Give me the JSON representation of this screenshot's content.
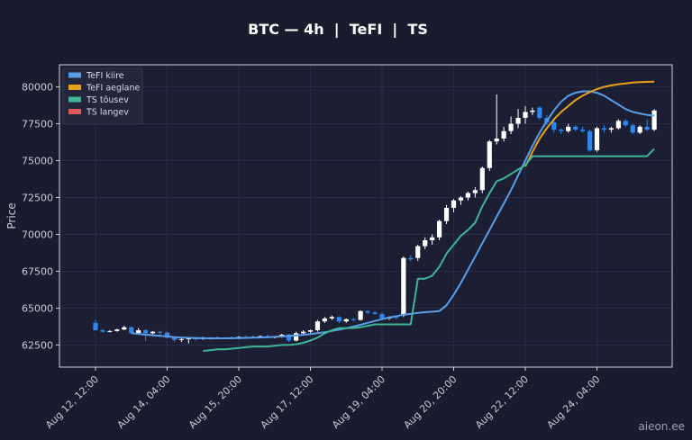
{
  "chart_data": {
    "type": "candlestick",
    "title": "BTC — 4h  |  TeFI  |  TS",
    "xlabel": "",
    "ylabel": "Price",
    "ylim": [
      61000,
      81500
    ],
    "grid": true,
    "legend_placement": "top-left",
    "x_ticks": [
      "Aug 12, 12:00",
      "Aug 14, 04:00",
      "Aug 15, 20:00",
      "Aug 17, 12:00",
      "Aug 19, 04:00",
      "Aug 20, 20:00",
      "Aug 22, 12:00",
      "Aug 24, 04:00"
    ],
    "y_ticks": [
      62500,
      65000,
      67500,
      70000,
      72500,
      75000,
      77500,
      80000
    ],
    "y_tick_labels": [
      "62500",
      "65000",
      "67500",
      "70000",
      "72500",
      "75000",
      "77500",
      "80000"
    ],
    "candles": [
      [
        64000,
        64200,
        63600,
        63500
      ],
      [
        63500,
        63600,
        63350,
        63400
      ],
      [
        63400,
        63500,
        63350,
        63450
      ],
      [
        63450,
        63600,
        63400,
        63550
      ],
      [
        63550,
        63800,
        63500,
        63700
      ],
      [
        63700,
        63750,
        63250,
        63300
      ],
      [
        63300,
        63650,
        63250,
        63500
      ],
      [
        63500,
        63600,
        62750,
        63300
      ],
      [
        63300,
        63450,
        63200,
        63400
      ],
      [
        63400,
        63450,
        63200,
        63350
      ],
      [
        63350,
        63400,
        62950,
        63000
      ],
      [
        63000,
        63050,
        62700,
        62850
      ],
      [
        62850,
        62950,
        62700,
        62900
      ],
      [
        62900,
        63000,
        62600,
        62950
      ],
      [
        62950,
        63050,
        62800,
        62900
      ],
      [
        62900,
        63050,
        62850,
        63000
      ],
      [
        63000,
        63050,
        62850,
        62950
      ],
      [
        62950,
        63050,
        62900,
        63000
      ],
      [
        63000,
        63050,
        62900,
        62980
      ],
      [
        62980,
        63050,
        62900,
        63000
      ],
      [
        63000,
        63100,
        62900,
        63050
      ],
      [
        63050,
        63150,
        62950,
        63000
      ],
      [
        63000,
        63100,
        62950,
        63050
      ],
      [
        63050,
        63150,
        63000,
        63100
      ],
      [
        63100,
        63200,
        62950,
        63000
      ],
      [
        63000,
        63100,
        62950,
        63050
      ],
      [
        63050,
        63250,
        63000,
        63200
      ],
      [
        63200,
        63250,
        62700,
        62800
      ],
      [
        62800,
        63400,
        62750,
        63300
      ],
      [
        63300,
        63500,
        63200,
        63400
      ],
      [
        63400,
        63550,
        63300,
        63500
      ],
      [
        63500,
        64200,
        63400,
        64100
      ],
      [
        64100,
        64400,
        64000,
        64300
      ],
      [
        64300,
        64500,
        64200,
        64400
      ],
      [
        64400,
        64450,
        64000,
        64100
      ],
      [
        64100,
        64300,
        64000,
        64250
      ],
      [
        64250,
        64350,
        64100,
        64200
      ],
      [
        64200,
        64850,
        64150,
        64800
      ],
      [
        64800,
        64850,
        64600,
        64700
      ],
      [
        64700,
        64800,
        64550,
        64600
      ],
      [
        64600,
        64700,
        64200,
        64300
      ],
      [
        64300,
        64450,
        64200,
        64400
      ],
      [
        64400,
        64500,
        64250,
        64350
      ],
      [
        64500,
        68500,
        64400,
        68400
      ],
      [
        68400,
        68600,
        68200,
        68300
      ],
      [
        68400,
        69300,
        68200,
        69200
      ],
      [
        69200,
        69800,
        69000,
        69600
      ],
      [
        69600,
        70000,
        69300,
        69800
      ],
      [
        69800,
        71000,
        69600,
        70900
      ],
      [
        70900,
        72000,
        70700,
        71800
      ],
      [
        71800,
        72400,
        71500,
        72300
      ],
      [
        72300,
        72600,
        72000,
        72500
      ],
      [
        72500,
        72900,
        72300,
        72800
      ],
      [
        72800,
        73200,
        72500,
        73000
      ],
      [
        73000,
        74600,
        72800,
        74500
      ],
      [
        74500,
        76400,
        74300,
        76300
      ],
      [
        76300,
        79500,
        76100,
        76500
      ],
      [
        76500,
        77300,
        76300,
        77000
      ],
      [
        77000,
        78000,
        76800,
        77500
      ],
      [
        77500,
        78500,
        77200,
        77900
      ],
      [
        77900,
        78700,
        77500,
        78300
      ],
      [
        78300,
        78600,
        78100,
        78400
      ],
      [
        78600,
        78700,
        77800,
        77900
      ],
      [
        77900,
        78100,
        77400,
        77600
      ],
      [
        77600,
        77800,
        76900,
        77100
      ],
      [
        77100,
        77200,
        76800,
        77000
      ],
      [
        77000,
        77500,
        76900,
        77300
      ],
      [
        77300,
        77400,
        77000,
        77100
      ],
      [
        77100,
        77300,
        76900,
        77000
      ],
      [
        77000,
        77100,
        75600,
        75700
      ],
      [
        75700,
        77300,
        75600,
        77200
      ],
      [
        77200,
        77400,
        76900,
        77100
      ],
      [
        77100,
        77300,
        76900,
        77200
      ],
      [
        77200,
        77800,
        77100,
        77700
      ],
      [
        77700,
        77800,
        77300,
        77400
      ],
      [
        77400,
        77500,
        76800,
        76900
      ],
      [
        76900,
        77400,
        76800,
        77300
      ],
      [
        77300,
        77800,
        77000,
        77100
      ],
      [
        77100,
        78500,
        77000,
        78400
      ]
    ],
    "series": [
      {
        "name": "TeFI kiire",
        "start_index": 5,
        "values": [
          63300,
          63250,
          63200,
          63160,
          63120,
          63080,
          63040,
          63010,
          62990,
          62970,
          62960,
          62950,
          62950,
          62955,
          62960,
          62970,
          62980,
          62995,
          63010,
          63030,
          63050,
          63080,
          63110,
          63150,
          63190,
          63240,
          63300,
          63370,
          63450,
          63540,
          63640,
          63750,
          63870,
          64000,
          64130,
          64250,
          64360,
          64460,
          64550,
          64620,
          64680,
          64720,
          64760,
          64800,
          65200,
          65900,
          66700,
          67600,
          68500,
          69400,
          70300,
          71200,
          72100,
          73000,
          74000,
          75000,
          76000,
          76900,
          77700,
          78400,
          79000,
          79400,
          79600,
          79700,
          79700,
          79600,
          79400,
          79100,
          78800,
          78500,
          78300,
          78200,
          78100,
          78050
        ]
      },
      {
        "name": "TeFI aeglane",
        "start_index": 60,
        "values": [
          74600,
          75600,
          76500,
          77200,
          77800,
          78300,
          78700,
          79100,
          79400,
          79650,
          79850,
          80000,
          80100,
          80180,
          80240,
          80290,
          80320,
          80340,
          80350
        ]
      },
      {
        "name": "TS tõusev",
        "start_index": 15,
        "values": [
          62100,
          62150,
          62200,
          62200,
          62250,
          62300,
          62350,
          62400,
          62400,
          62400,
          62450,
          62500,
          62500,
          62550,
          62650,
          62800,
          63000,
          63300,
          63500,
          63650,
          63650,
          63650,
          63700,
          63800,
          63900,
          63900,
          63900,
          63900,
          63900,
          63900,
          67000,
          67000,
          67200,
          67800,
          68700,
          69300,
          69900,
          70300,
          70800,
          71900,
          72800,
          73600,
          73800,
          74100,
          74400,
          74700,
          75300,
          75300,
          75300,
          75300,
          75300,
          75300,
          75300,
          75300,
          75300,
          75300,
          75300,
          75300,
          75300,
          75300,
          75300,
          75300,
          75300,
          75800
        ]
      },
      {
        "name": "TS langev",
        "start_index": 0,
        "values": []
      }
    ]
  },
  "colors": {
    "bg": "#1a1c2e",
    "plot_bg": "#1c1f33",
    "grid": "#2b2f48",
    "axis": "#d0d2dc",
    "up": "#ffffff",
    "down": "#2f86eb",
    "TeFI kiire": "#5a9ee8",
    "TeFI aeglane": "#e8a21a",
    "TS tõusev": "#3fb596",
    "TS langev": "#e05a5a"
  },
  "watermark": "aieon.ee"
}
